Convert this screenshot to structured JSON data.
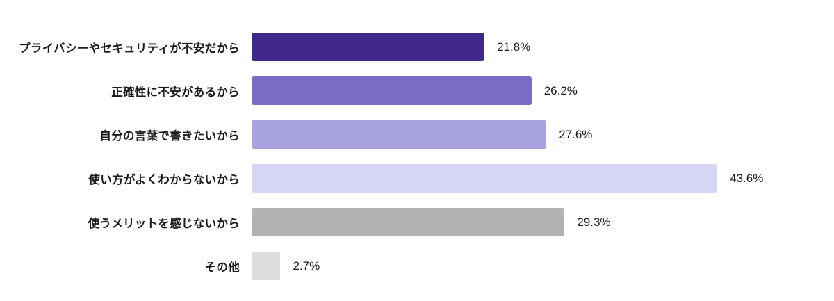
{
  "background_color": "#ffffff",
  "text_color": "#1a1a1a",
  "chart_data": {
    "type": "bar",
    "orientation": "horizontal",
    "title": "",
    "xlabel": "",
    "ylabel": "",
    "xlim": [
      0,
      45
    ],
    "grid": false,
    "legend": false,
    "categories": [
      "プライバシーやセキュリティが不安だから",
      "正確性に不安があるから",
      "自分の言葉で書きたいから",
      "使い方がよくわからないから",
      "使うメリットを感じないから",
      "その他"
    ],
    "values": [
      21.8,
      26.2,
      27.6,
      43.6,
      29.3,
      2.7
    ],
    "value_labels": [
      "21.8%",
      "26.2%",
      "27.6%",
      "43.6%",
      "29.3%",
      "2.7%"
    ],
    "bar_colors": [
      "#40298a",
      "#7a6dc8",
      "#a8a3df",
      "#d6d5f5",
      "#b3b3b3",
      "#dcdcdc"
    ]
  }
}
